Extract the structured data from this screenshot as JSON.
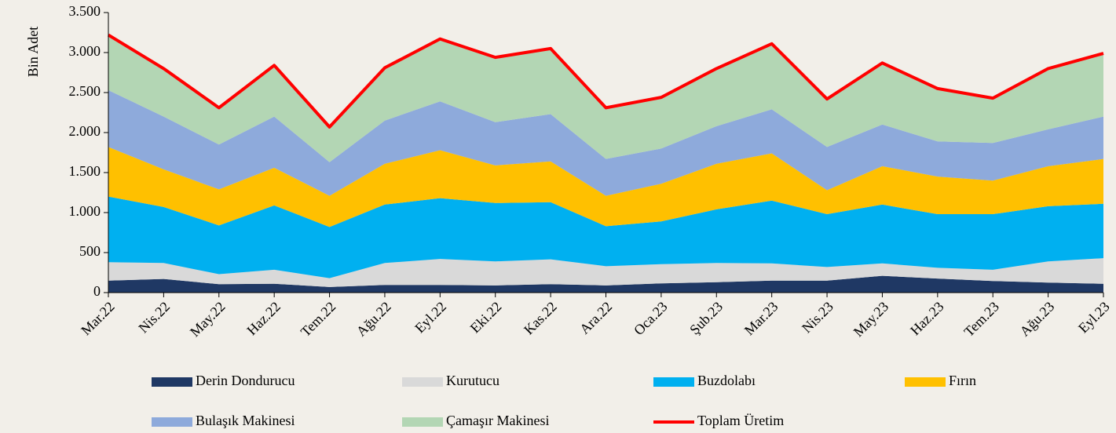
{
  "chart_data": {
    "type": "stacked_area",
    "y_label": "Bin Adet",
    "categories": [
      "Mar.22",
      "Nis.22",
      "May.22",
      "Haz.22",
      "Tem.22",
      "Ağu.22",
      "Eyl.22",
      "Eki.22",
      "Kas.22",
      "Ara.22",
      "Oca.23",
      "Şub.23",
      "Mar.23",
      "Nis.23",
      "May.23",
      "Haz.23",
      "Tem.23",
      "Ağu.23",
      "Eyl.23"
    ],
    "series": [
      {
        "name": "Derin Dondurucu",
        "color": "#1f3864",
        "values": [
          150,
          170,
          105,
          110,
          70,
          95,
          95,
          90,
          105,
          90,
          115,
          130,
          150,
          150,
          210,
          175,
          145,
          125,
          110
        ]
      },
      {
        "name": "Kurutucu",
        "color": "#d9d9d9",
        "values": [
          230,
          200,
          125,
          175,
          110,
          275,
          325,
          300,
          310,
          240,
          240,
          240,
          215,
          170,
          155,
          135,
          140,
          265,
          320
        ]
      },
      {
        "name": "Buzdolabı",
        "color": "#00b0f0",
        "values": [
          820,
          700,
          610,
          805,
          640,
          730,
          760,
          730,
          715,
          500,
          535,
          670,
          785,
          660,
          735,
          670,
          695,
          690,
          680
        ]
      },
      {
        "name": "Fırın",
        "color": "#ffc000",
        "values": [
          620,
          470,
          450,
          470,
          390,
          510,
          600,
          470,
          510,
          380,
          470,
          570,
          590,
          300,
          480,
          470,
          420,
          500,
          560
        ]
      },
      {
        "name": "Bulaşık Makinesi",
        "color": "#8eaadb",
        "values": [
          710,
          660,
          560,
          640,
          420,
          540,
          610,
          540,
          590,
          460,
          440,
          470,
          550,
          540,
          520,
          440,
          470,
          460,
          530
        ]
      },
      {
        "name": "Çamaşır Makinesi",
        "color": "#b3d6b4",
        "values": [
          690,
          600,
          460,
          640,
          440,
          660,
          780,
          810,
          820,
          640,
          640,
          720,
          820,
          600,
          770,
          660,
          560,
          760,
          790
        ]
      },
      {
        "name": "Toplam Üretim",
        "color": "#ff0000",
        "type": "line",
        "values": [
          3220,
          2800,
          2310,
          2840,
          2070,
          2810,
          3170,
          2940,
          3050,
          2310,
          2440,
          2800,
          3110,
          2420,
          2870,
          2550,
          2430,
          2800,
          2990
        ]
      }
    ],
    "ylim": [
      0,
      3500
    ],
    "yticks": [
      0,
      {
        "value": 500,
        "label": "500"
      },
      {
        "value": 1000,
        "label": "1.000"
      },
      {
        "value": 1500,
        "label": "1.500"
      },
      {
        "value": 2000,
        "label": "2.000"
      },
      {
        "value": 2500,
        "label": "2.500"
      },
      {
        "value": 3000,
        "label": "3.000"
      },
      {
        "value": 3500,
        "label": "3.500"
      }
    ]
  }
}
